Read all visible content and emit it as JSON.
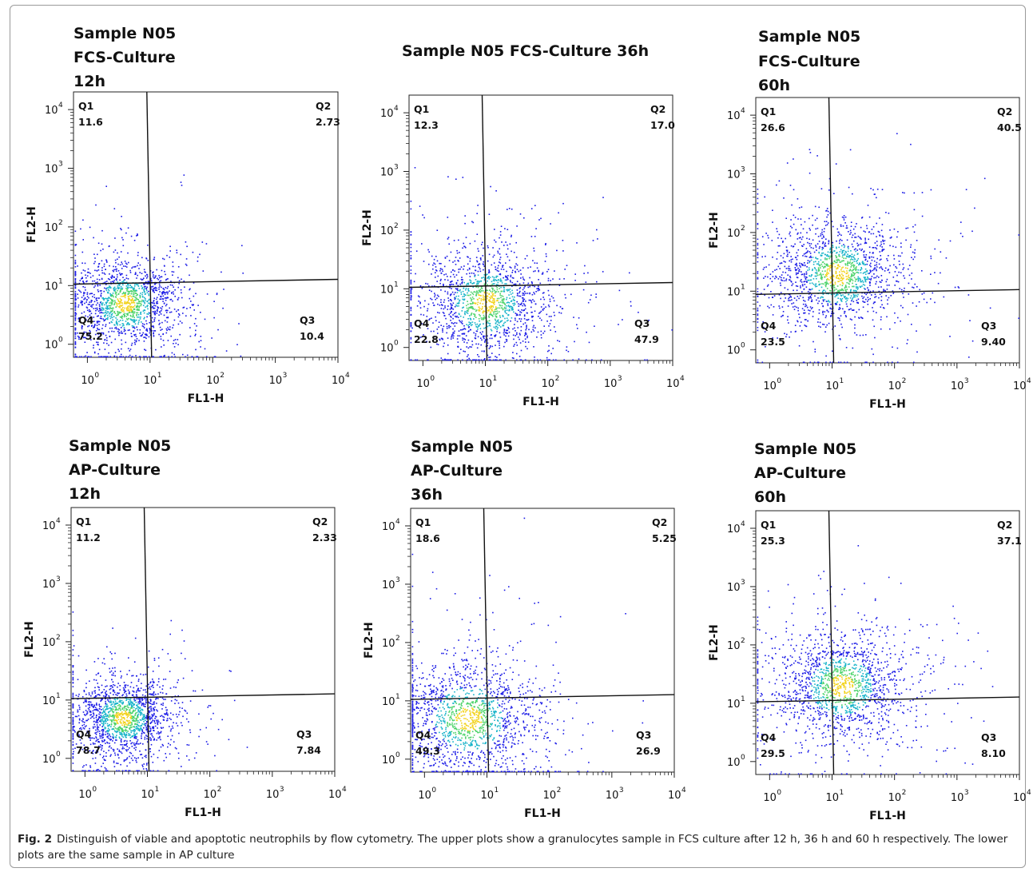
{
  "caption": {
    "label": "Fig. 2",
    "text": "Distinguish of viable and apoptotic neutrophils by flow cytometry. The upper plots show a granulocytes sample in FCS culture after 12 h, 36 h and 60 h respectively. The lower plots are the same sample in AP culture"
  },
  "chart_data": [
    {
      "type": "scatter",
      "title_lines": [
        "Sample N05",
        "FCS-Culture",
        "12h"
      ],
      "xlabel": "FL1-H",
      "ylabel": "FL2-H",
      "log_scale": true,
      "xlim": [
        0.6,
        10000
      ],
      "ylim": [
        0.6,
        20000
      ],
      "tick_labels": [
        "10^0",
        "10^1",
        "10^2",
        "10^3",
        "10^4"
      ],
      "gate": {
        "x": 10,
        "y": 12
      },
      "quadrants": [
        {
          "name": "Q1",
          "value": "11.6"
        },
        {
          "name": "Q2",
          "value": "2.73"
        },
        {
          "name": "Q3",
          "value": "10.4"
        },
        {
          "name": "Q4",
          "value": "75.2"
        }
      ],
      "density": {
        "core_x": 4,
        "core_y": 5,
        "spread": 0.45
      }
    },
    {
      "type": "scatter",
      "title_lines": [
        "Sample N05 FCS-Culture 36h"
      ],
      "xlabel": "FL1-H",
      "ylabel": "FL2-H",
      "log_scale": true,
      "xlim": [
        0.6,
        10000
      ],
      "ylim": [
        0.6,
        20000
      ],
      "tick_labels": [
        "10^0",
        "10^1",
        "10^2",
        "10^3",
        "10^4"
      ],
      "gate": {
        "x": 10,
        "y": 12
      },
      "quadrants": [
        {
          "name": "Q1",
          "value": "12.3"
        },
        {
          "name": "Q2",
          "value": "17.0"
        },
        {
          "name": "Q3",
          "value": "47.9"
        },
        {
          "name": "Q4",
          "value": "22.8"
        }
      ],
      "density": {
        "core_x": 10,
        "core_y": 6,
        "spread": 0.55
      }
    },
    {
      "type": "scatter",
      "title_lines": [
        "Sample N05",
        "FCS-Culture",
        "60h"
      ],
      "xlabel": "FL1-H",
      "ylabel": "FL2-H",
      "log_scale": true,
      "xlim": [
        0.6,
        10000
      ],
      "ylim": [
        0.6,
        20000
      ],
      "tick_labels": [
        "10^0",
        "10^1",
        "10^2",
        "10^3",
        "10^4"
      ],
      "gate": {
        "x": 10,
        "y": 10
      },
      "quadrants": [
        {
          "name": "Q1",
          "value": "26.6"
        },
        {
          "name": "Q2",
          "value": "40.5"
        },
        {
          "name": "Q3",
          "value": "9.40"
        },
        {
          "name": "Q4",
          "value": "23.5"
        }
      ],
      "density": {
        "core_x": 12,
        "core_y": 20,
        "spread": 0.55
      }
    },
    {
      "type": "scatter",
      "title_lines": [
        "Sample N05",
        "AP-Culture",
        "12h"
      ],
      "xlabel": "FL1-H",
      "ylabel": "FL2-H",
      "log_scale": true,
      "xlim": [
        0.6,
        10000
      ],
      "ylim": [
        0.6,
        20000
      ],
      "tick_labels": [
        "10^0",
        "10^1",
        "10^2",
        "10^3",
        "10^4"
      ],
      "gate": {
        "x": 10,
        "y": 12
      },
      "quadrants": [
        {
          "name": "Q1",
          "value": "11.2"
        },
        {
          "name": "Q2",
          "value": "2.33"
        },
        {
          "name": "Q3",
          "value": "7.84"
        },
        {
          "name": "Q4",
          "value": "78.7"
        }
      ],
      "density": {
        "core_x": 4,
        "core_y": 5,
        "spread": 0.4
      }
    },
    {
      "type": "scatter",
      "title_lines": [
        "Sample N05",
        "AP-Culture",
        "36h"
      ],
      "xlabel": "FL1-H",
      "ylabel": "FL2-H",
      "log_scale": true,
      "xlim": [
        0.6,
        10000
      ],
      "ylim": [
        0.6,
        20000
      ],
      "tick_labels": [
        "10^0",
        "10^1",
        "10^2",
        "10^3",
        "10^4"
      ],
      "gate": {
        "x": 10,
        "y": 12
      },
      "quadrants": [
        {
          "name": "Q1",
          "value": "18.6"
        },
        {
          "name": "Q2",
          "value": "5.25"
        },
        {
          "name": "Q3",
          "value": "26.9"
        },
        {
          "name": "Q4",
          "value": "49.3"
        }
      ],
      "density": {
        "core_x": 5,
        "core_y": 5,
        "spread": 0.6
      }
    },
    {
      "type": "scatter",
      "title_lines": [
        "Sample N05",
        "AP-Culture",
        "60h"
      ],
      "xlabel": "FL1-H",
      "ylabel": "FL2-H",
      "log_scale": true,
      "xlim": [
        0.6,
        10000
      ],
      "ylim": [
        0.6,
        20000
      ],
      "tick_labels": [
        "10^0",
        "10^1",
        "10^2",
        "10^3",
        "10^4"
      ],
      "gate": {
        "x": 10,
        "y": 12
      },
      "quadrants": [
        {
          "name": "Q1",
          "value": "25.3"
        },
        {
          "name": "Q2",
          "value": "37.1"
        },
        {
          "name": "Q3",
          "value": "8.10"
        },
        {
          "name": "Q4",
          "value": "29.5"
        }
      ],
      "density": {
        "core_x": 14,
        "core_y": 20,
        "spread": 0.55
      }
    }
  ]
}
